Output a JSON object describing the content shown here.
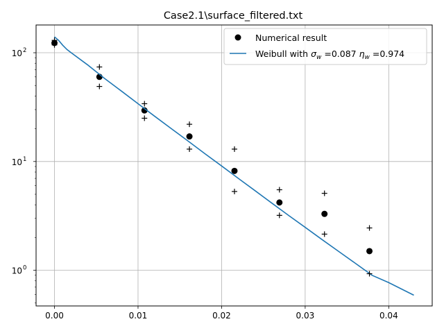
{
  "chart_data": {
    "type": "scatter",
    "title": "Case2.1\\surface_filtered.txt",
    "xlabel": "",
    "ylabel": "",
    "xlim": [
      -0.0022,
      0.0452
    ],
    "ylim": [
      0.47,
      180
    ],
    "y_scale": "log",
    "grid": true,
    "legend_position": "top-right",
    "x_ticks": [
      {
        "value": 0.0,
        "label": "0.00"
      },
      {
        "value": 0.01,
        "label": "0.01"
      },
      {
        "value": 0.02,
        "label": "0.02"
      },
      {
        "value": 0.03,
        "label": "0.03"
      },
      {
        "value": 0.04,
        "label": "0.04"
      }
    ],
    "y_ticks": [
      {
        "value": 1,
        "base": "10",
        "exp": "0"
      },
      {
        "value": 10,
        "base": "10",
        "exp": "1"
      },
      {
        "value": 100,
        "base": "10",
        "exp": "2"
      }
    ],
    "series": [
      {
        "name": "Numerical result",
        "kind": "points",
        "color": "#000000",
        "x": [
          0.0,
          0.00538,
          0.01077,
          0.01615,
          0.02154,
          0.02692,
          0.03231,
          0.03769
        ],
        "y": [
          123,
          60,
          29.5,
          17,
          8.2,
          4.2,
          3.3,
          1.5
        ]
      },
      {
        "name": "Weibull with σ_w =0.087 η_w =0.974",
        "kind": "line",
        "color": "#1f77b4",
        "x": [
          0.0,
          0.0005,
          0.001,
          0.0015,
          0.002,
          0.004,
          0.006,
          0.008,
          0.01,
          0.012,
          0.014,
          0.016,
          0.018,
          0.02,
          0.022,
          0.024,
          0.026,
          0.028,
          0.03,
          0.032,
          0.034,
          0.036,
          0.038,
          0.04,
          0.043
        ],
        "y": [
          140,
          130,
          117,
          107,
          100,
          77,
          58,
          44.5,
          34,
          26,
          20,
          15.4,
          11.8,
          9.1,
          7.0,
          5.4,
          4.15,
          3.2,
          2.48,
          1.92,
          1.49,
          1.16,
          0.9,
          0.77,
          0.59
        ]
      },
      {
        "name": "",
        "kind": "plus",
        "color": "#000000",
        "x": [
          0.0,
          0.0,
          0.00538,
          0.00538,
          0.01077,
          0.01077,
          0.01615,
          0.01615,
          0.02154,
          0.02154,
          0.02692,
          0.02692,
          0.03231,
          0.03231,
          0.03769,
          0.03769
        ],
        "y": [
          130,
          118,
          74,
          49,
          34,
          25,
          22,
          13,
          13,
          5.3,
          5.5,
          3.2,
          5.1,
          2.15,
          2.45,
          0.93
        ]
      }
    ],
    "legend": {
      "entries": [
        {
          "series": 0,
          "text": "Numerical result"
        },
        {
          "series": 1,
          "prefix": "Weibull with ",
          "sigma_sym": "σ",
          "sigma_sub": "w",
          "sigma_val": " =0.087 ",
          "eta_sym": "η",
          "eta_sub": "w",
          "eta_val": " =0.974"
        }
      ]
    }
  }
}
